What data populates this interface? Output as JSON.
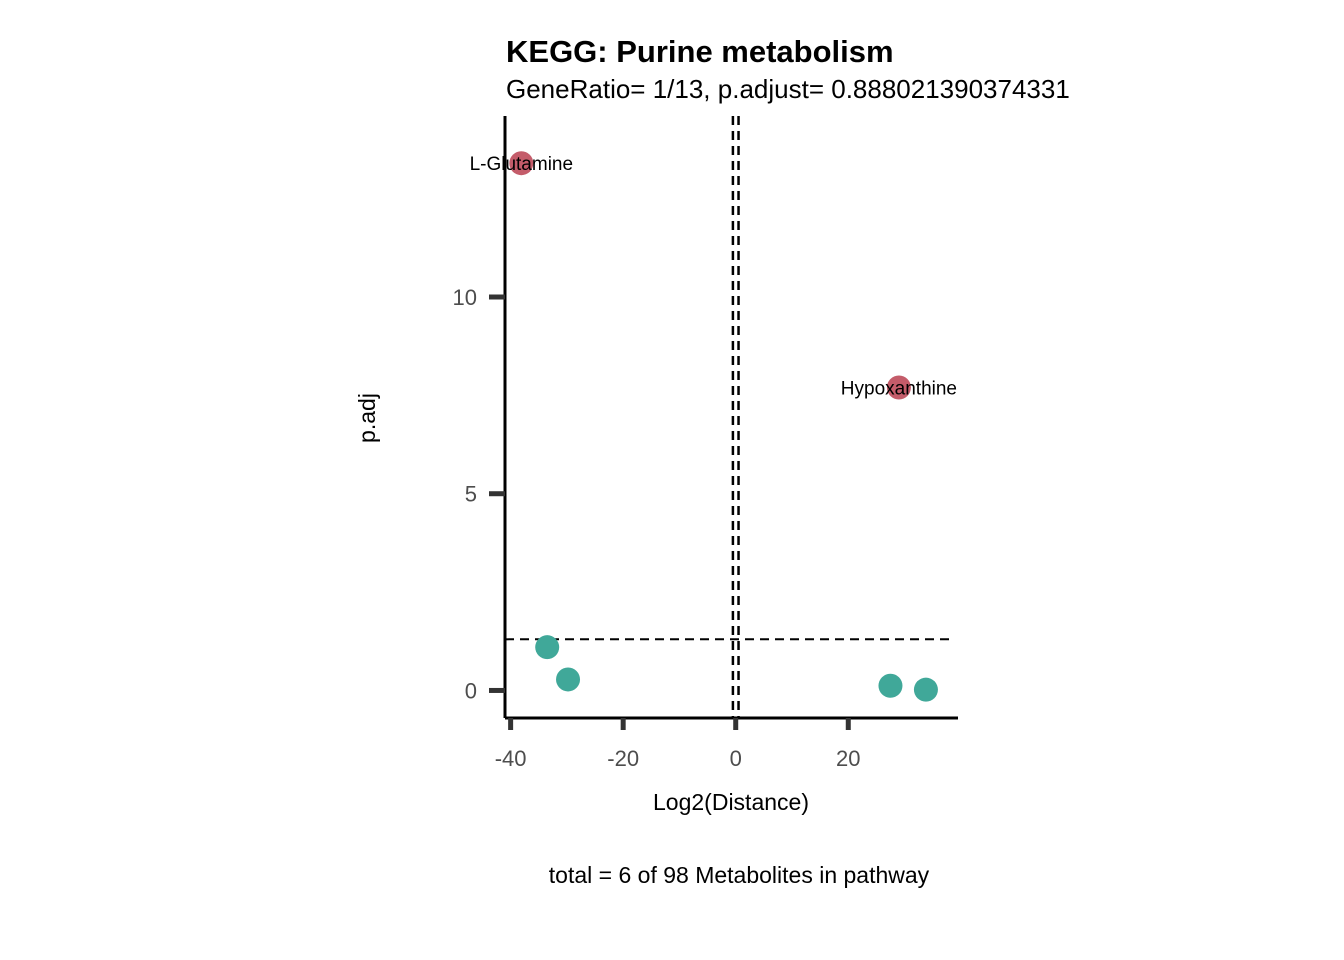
{
  "chart_data": {
    "type": "scatter",
    "title": "KEGG: Purine metabolism",
    "subtitle": "GeneRatio= 1/13, p.adjust= 0.888021390374331",
    "xlabel": "Log2(Distance)",
    "ylabel": "p.adj",
    "caption": "total = 6 of 98 Metabolites in pathway",
    "xlim": [
      -41,
      39.5
    ],
    "ylim": [
      -0.7,
      14.6
    ],
    "x_ticks": [
      -40,
      -20,
      0,
      20
    ],
    "y_ticks": [
      0,
      5,
      10
    ],
    "x_tick_labels": [
      "-40",
      "-20",
      "0",
      "20"
    ],
    "y_tick_labels": [
      "0",
      "5",
      "10"
    ],
    "reference_lines": {
      "vertical": [
        -0.5,
        0.5
      ],
      "horizontal": 1.3,
      "style": "dashed"
    },
    "colors": {
      "significant": "#c45c6a",
      "not_significant": "#40a899"
    },
    "points": [
      {
        "x": -38.1,
        "y": 13.4,
        "label": "L-Glutamine",
        "significant": true
      },
      {
        "x": 29.0,
        "y": 7.7,
        "label": "Hypoxanthine",
        "significant": true
      },
      {
        "x": -33.5,
        "y": 1.1,
        "label": "",
        "significant": false
      },
      {
        "x": -29.8,
        "y": 0.28,
        "label": "",
        "significant": false
      },
      {
        "x": 27.5,
        "y": 0.12,
        "label": "",
        "significant": false
      },
      {
        "x": 33.8,
        "y": 0.02,
        "label": "",
        "significant": false
      }
    ],
    "grid": false,
    "legend": "none"
  }
}
